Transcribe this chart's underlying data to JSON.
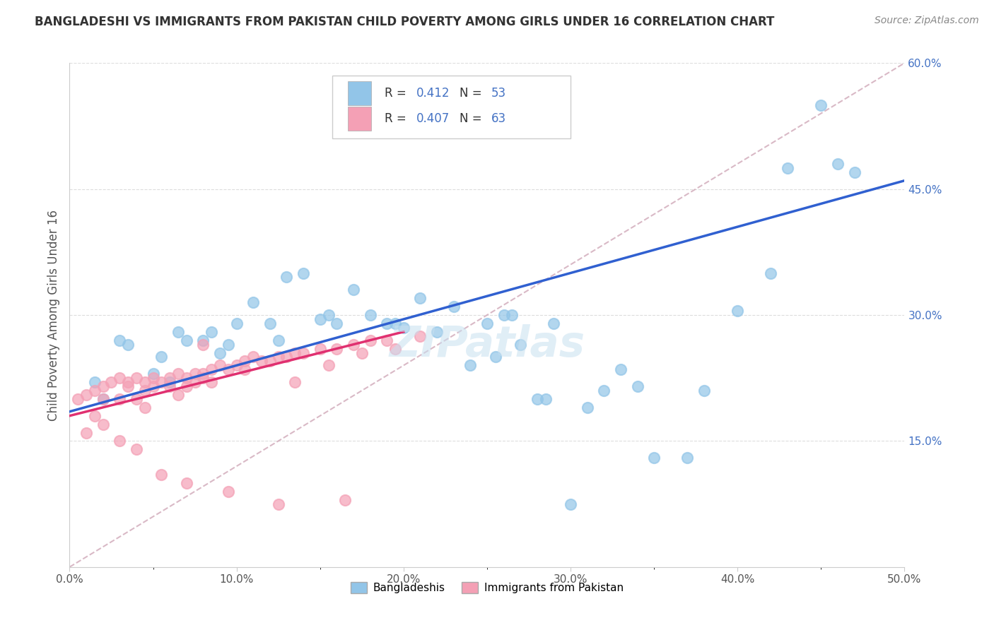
{
  "title": "BANGLADESHI VS IMMIGRANTS FROM PAKISTAN CHILD POVERTY AMONG GIRLS UNDER 16 CORRELATION CHART",
  "source": "Source: ZipAtlas.com",
  "ylabel": "Child Poverty Among Girls Under 16",
  "xlim": [
    0,
    50
  ],
  "ylim": [
    0,
    60
  ],
  "xtick_labels": [
    "0.0%",
    "",
    "10.0%",
    "",
    "20.0%",
    "",
    "30.0%",
    "",
    "40.0%",
    "",
    "50.0%"
  ],
  "xtick_vals": [
    0,
    5,
    10,
    15,
    20,
    25,
    30,
    35,
    40,
    45,
    50
  ],
  "ytick_labels": [
    "15.0%",
    "30.0%",
    "45.0%",
    "60.0%"
  ],
  "ytick_vals": [
    15,
    30,
    45,
    60
  ],
  "watermark": "ZIPatlas",
  "legend_blue_label": "Bangladeshis",
  "legend_pink_label": "Immigrants from Pakistan",
  "r_blue": "0.412",
  "n_blue": "53",
  "r_pink": "0.407",
  "n_pink": "63",
  "blue_scatter_x": [
    1.5,
    2.0,
    3.5,
    5.0,
    6.0,
    6.5,
    7.0,
    8.0,
    9.0,
    9.5,
    10.0,
    11.0,
    12.0,
    13.0,
    14.0,
    15.0,
    16.0,
    17.0,
    18.0,
    19.0,
    20.0,
    21.0,
    22.0,
    23.0,
    24.0,
    25.0,
    26.0,
    27.0,
    28.0,
    29.0,
    30.0,
    31.0,
    32.0,
    33.0,
    34.0,
    35.0,
    37.0,
    38.0,
    40.0,
    42.0,
    43.0,
    45.0,
    47.0,
    3.0,
    5.5,
    8.5,
    12.5,
    15.5,
    19.5,
    26.5,
    28.5,
    46.0,
    25.5
  ],
  "blue_scatter_y": [
    22.0,
    20.0,
    26.5,
    23.0,
    22.0,
    28.0,
    27.0,
    27.0,
    25.5,
    26.5,
    29.0,
    31.5,
    29.0,
    34.5,
    35.0,
    29.5,
    29.0,
    33.0,
    30.0,
    29.0,
    28.5,
    32.0,
    28.0,
    31.0,
    24.0,
    29.0,
    30.0,
    26.5,
    20.0,
    29.0,
    7.5,
    19.0,
    21.0,
    23.5,
    21.5,
    13.0,
    13.0,
    21.0,
    30.5,
    35.0,
    47.5,
    55.0,
    47.0,
    27.0,
    25.0,
    28.0,
    27.0,
    30.0,
    29.0,
    30.0,
    20.0,
    48.0,
    25.0
  ],
  "pink_scatter_x": [
    0.5,
    1.0,
    1.5,
    1.5,
    2.0,
    2.0,
    2.5,
    3.0,
    3.0,
    3.5,
    3.5,
    4.0,
    4.0,
    4.5,
    4.5,
    5.0,
    5.0,
    5.5,
    6.0,
    6.0,
    6.5,
    7.0,
    7.0,
    7.5,
    7.5,
    8.0,
    8.0,
    8.5,
    9.0,
    9.5,
    10.0,
    10.5,
    11.0,
    11.5,
    12.0,
    12.5,
    13.0,
    13.5,
    14.0,
    15.0,
    16.0,
    17.0,
    18.0,
    19.0,
    1.0,
    2.0,
    3.0,
    4.5,
    6.5,
    8.5,
    10.5,
    13.5,
    15.5,
    17.5,
    19.5,
    21.0,
    5.5,
    7.0,
    9.5,
    12.5,
    16.5,
    4.0,
    8.0
  ],
  "pink_scatter_y": [
    20.0,
    20.5,
    21.0,
    18.0,
    20.0,
    21.5,
    22.0,
    22.5,
    20.0,
    22.0,
    21.5,
    22.5,
    20.0,
    22.0,
    21.0,
    22.5,
    21.5,
    22.0,
    22.5,
    21.5,
    23.0,
    22.5,
    21.5,
    23.0,
    22.0,
    23.0,
    22.5,
    23.5,
    24.0,
    23.5,
    24.0,
    24.5,
    25.0,
    24.5,
    24.5,
    25.0,
    25.0,
    25.5,
    25.5,
    26.0,
    26.0,
    26.5,
    27.0,
    27.0,
    16.0,
    17.0,
    15.0,
    19.0,
    20.5,
    22.0,
    23.5,
    22.0,
    24.0,
    25.5,
    26.0,
    27.5,
    11.0,
    10.0,
    9.0,
    7.5,
    8.0,
    14.0,
    26.5
  ],
  "blue_color": "#92C5E8",
  "pink_color": "#F4A0B5",
  "blue_line_color": "#3060D0",
  "pink_line_color": "#E03070",
  "diagonal_color": "#D0A8B8",
  "background_color": "#FFFFFF",
  "grid_color": "#DDDDDD",
  "blue_line_x": [
    0,
    50
  ],
  "blue_line_y": [
    18.5,
    46.0
  ],
  "pink_line_x": [
    0,
    20
  ],
  "pink_line_y": [
    18.0,
    28.0
  ]
}
